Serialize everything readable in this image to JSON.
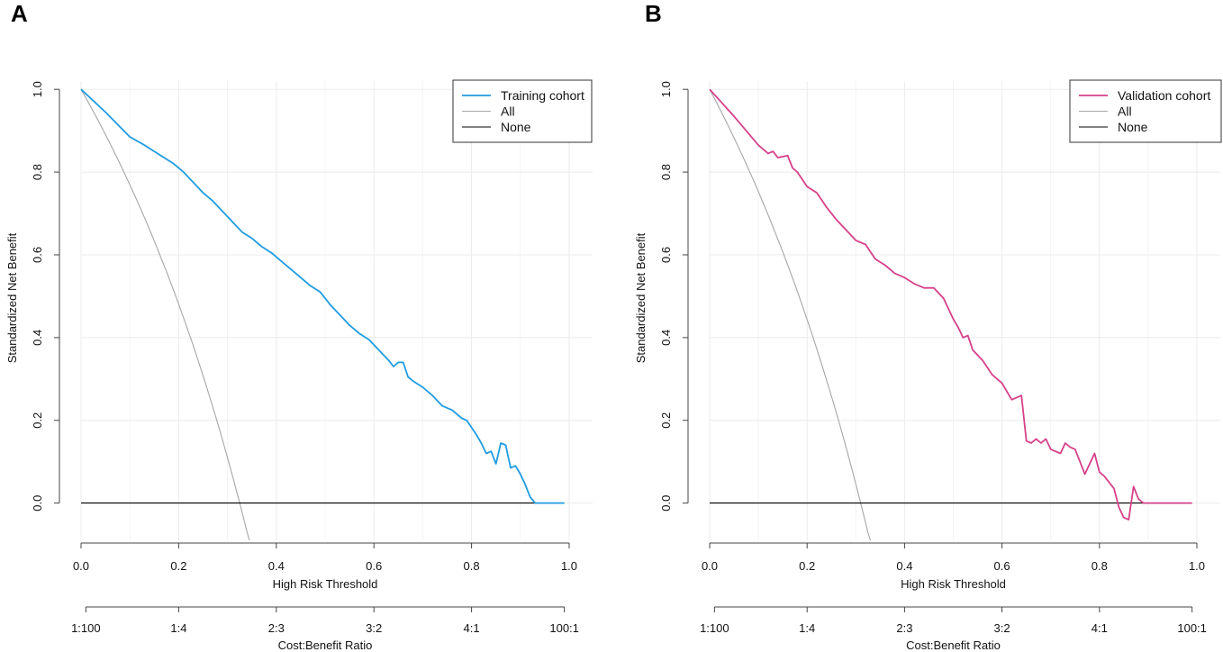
{
  "chart_data": [
    {
      "type": "line",
      "panel_label": "A",
      "xlabel": "High Risk Threshold",
      "ylabel": "Standardized Net Benefit",
      "xlim": [
        0,
        1
      ],
      "ylim": [
        -0.09,
        1.02
      ],
      "grid": true,
      "x_ticks": [
        "0.0",
        "0.2",
        "0.4",
        "0.6",
        "0.8",
        "1.0"
      ],
      "x_tick_values": [
        0,
        0.2,
        0.4,
        0.6,
        0.8,
        1.0
      ],
      "y_ticks": [
        "0.0",
        "0.2",
        "0.4",
        "0.6",
        "0.8",
        "1.0"
      ],
      "y_tick_values": [
        0,
        0.2,
        0.4,
        0.6,
        0.8,
        1.0
      ],
      "cost_benefit_axis": {
        "label": "Cost:Benefit Ratio",
        "ticks": [
          "1:100",
          "1:4",
          "2:3",
          "3:2",
          "4:1",
          "100:1"
        ],
        "tick_values": [
          0.0099,
          0.2,
          0.4,
          0.6,
          0.8,
          0.9901
        ]
      },
      "legend": {
        "position": "top-right",
        "entries": [
          "Training cohort",
          "All",
          "None"
        ]
      },
      "prevalence": 0.325,
      "series": [
        {
          "name": "Training cohort",
          "color": "#1f9ce0",
          "x": [
            0.0,
            0.05,
            0.1,
            0.13,
            0.15,
            0.17,
            0.19,
            0.21,
            0.23,
            0.25,
            0.27,
            0.29,
            0.31,
            0.33,
            0.35,
            0.37,
            0.39,
            0.41,
            0.43,
            0.45,
            0.47,
            0.49,
            0.51,
            0.53,
            0.55,
            0.57,
            0.59,
            0.61,
            0.63,
            0.64,
            0.65,
            0.66,
            0.67,
            0.68,
            0.7,
            0.72,
            0.74,
            0.76,
            0.78,
            0.79,
            0.81,
            0.82,
            0.83,
            0.84,
            0.85,
            0.86,
            0.87,
            0.88,
            0.89,
            0.9,
            0.91,
            0.92,
            0.93,
            0.95,
            0.97,
            0.99
          ],
          "y": [
            1.0,
            0.945,
            0.885,
            0.865,
            0.85,
            0.835,
            0.82,
            0.8,
            0.775,
            0.75,
            0.73,
            0.705,
            0.68,
            0.655,
            0.64,
            0.62,
            0.605,
            0.585,
            0.565,
            0.545,
            0.525,
            0.51,
            0.48,
            0.455,
            0.43,
            0.41,
            0.395,
            0.37,
            0.345,
            0.33,
            0.34,
            0.34,
            0.305,
            0.295,
            0.28,
            0.26,
            0.235,
            0.225,
            0.205,
            0.2,
            0.165,
            0.145,
            0.12,
            0.125,
            0.095,
            0.145,
            0.14,
            0.085,
            0.09,
            0.07,
            0.045,
            0.015,
            0.0,
            0.0,
            0.0,
            0.0
          ]
        },
        {
          "name": "All",
          "color": "#a6a6a6"
        },
        {
          "name": "None",
          "color": "#000000",
          "x": [
            0.0,
            0.99
          ],
          "y": [
            0.0,
            0.0
          ]
        }
      ]
    },
    {
      "type": "line",
      "panel_label": "B",
      "xlabel": "High Risk Threshold",
      "ylabel": "Standardized Net Benefit",
      "xlim": [
        0,
        1
      ],
      "ylim": [
        -0.09,
        1.02
      ],
      "grid": true,
      "x_ticks": [
        "0.0",
        "0.2",
        "0.4",
        "0.6",
        "0.8",
        "1.0"
      ],
      "x_tick_values": [
        0,
        0.2,
        0.4,
        0.6,
        0.8,
        1.0
      ],
      "y_ticks": [
        "0.0",
        "0.2",
        "0.4",
        "0.6",
        "0.8",
        "1.0"
      ],
      "y_tick_values": [
        0,
        0.2,
        0.4,
        0.6,
        0.8,
        1.0
      ],
      "cost_benefit_axis": {
        "label": "Cost:Benefit Ratio",
        "ticks": [
          "1:100",
          "1:4",
          "2:3",
          "3:2",
          "4:1",
          "100:1"
        ],
        "tick_values": [
          0.0099,
          0.2,
          0.4,
          0.6,
          0.8,
          0.9901
        ]
      },
      "legend": {
        "position": "top-right",
        "entries": [
          "Validation cohort",
          "All",
          "None"
        ]
      },
      "prevalence": 0.31,
      "series": [
        {
          "name": "Validation cohort",
          "color": "#d6408a",
          "x": [
            0.0,
            0.05,
            0.1,
            0.12,
            0.13,
            0.14,
            0.16,
            0.17,
            0.18,
            0.2,
            0.22,
            0.24,
            0.26,
            0.28,
            0.3,
            0.32,
            0.34,
            0.36,
            0.38,
            0.4,
            0.42,
            0.44,
            0.46,
            0.48,
            0.5,
            0.51,
            0.52,
            0.53,
            0.54,
            0.56,
            0.58,
            0.6,
            0.62,
            0.64,
            0.65,
            0.66,
            0.67,
            0.68,
            0.69,
            0.7,
            0.72,
            0.73,
            0.74,
            0.75,
            0.76,
            0.77,
            0.79,
            0.8,
            0.81,
            0.83,
            0.84,
            0.85,
            0.86,
            0.87,
            0.88,
            0.89,
            0.9,
            0.92,
            0.95,
            0.99
          ],
          "y": [
            1.0,
            0.935,
            0.865,
            0.845,
            0.85,
            0.835,
            0.84,
            0.81,
            0.8,
            0.765,
            0.75,
            0.715,
            0.685,
            0.66,
            0.635,
            0.625,
            0.59,
            0.575,
            0.555,
            0.545,
            0.53,
            0.52,
            0.52,
            0.495,
            0.445,
            0.425,
            0.4,
            0.405,
            0.37,
            0.345,
            0.31,
            0.29,
            0.25,
            0.26,
            0.15,
            0.145,
            0.155,
            0.145,
            0.155,
            0.13,
            0.12,
            0.145,
            0.135,
            0.13,
            0.1,
            0.07,
            0.12,
            0.075,
            0.065,
            0.035,
            -0.01,
            -0.035,
            -0.04,
            0.04,
            0.01,
            0.0,
            0.0,
            0.0,
            0.0,
            0.0
          ]
        },
        {
          "name": "All",
          "color": "#a6a6a6"
        },
        {
          "name": "None",
          "color": "#000000",
          "x": [
            0.0,
            0.99
          ],
          "y": [
            0.0,
            0.0
          ]
        }
      ]
    }
  ]
}
